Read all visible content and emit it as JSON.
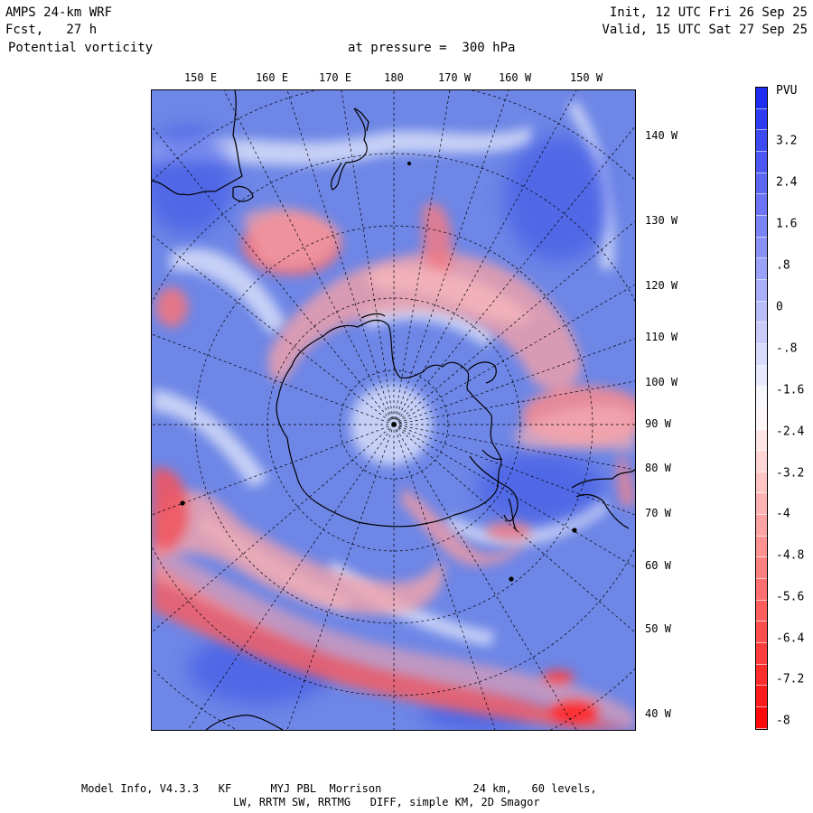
{
  "header": {
    "model": "AMPS 24-km WRF",
    "init": "Init, 12 UTC Fri 26 Sep 25",
    "fcst": "Fcst,   27 h",
    "valid": "Valid, 15 UTC Sat 27 Sep 25",
    "field": "Potential vorticity",
    "level": "at pressure =  300 hPa"
  },
  "map": {
    "top_labels": [
      "150 E",
      "160 E",
      "170 E",
      "180",
      "170 W",
      "160 W",
      "150 W"
    ],
    "right_labels": [
      "140 W",
      "130 W",
      "120 W",
      "110 W",
      "100 W",
      "90 W",
      "80 W",
      "70 W",
      "60 W",
      "50 W",
      "40 W"
    ],
    "colors": {
      "negative": "#ff1f1f",
      "positive": "#2233ee",
      "background": "#6f86e8"
    }
  },
  "colorbar": {
    "unit": "PVU",
    "labels": [
      "3.2",
      "2.4",
      "1.6",
      ".8",
      "0",
      "-.8",
      "-1.6",
      "-2.4",
      "-3.2",
      "-4",
      "-4.8",
      "-5.6",
      "-6.4",
      "-7.2",
      "-8"
    ]
  },
  "footer": {
    "line1": "Model Info, V4.3.3   KF      MYJ PBL  Morrison              24 km,   60 levels,",
    "line2": "LW, RRTM SW, RRTMG   DIFF, simple KM, 2D Smagor"
  }
}
